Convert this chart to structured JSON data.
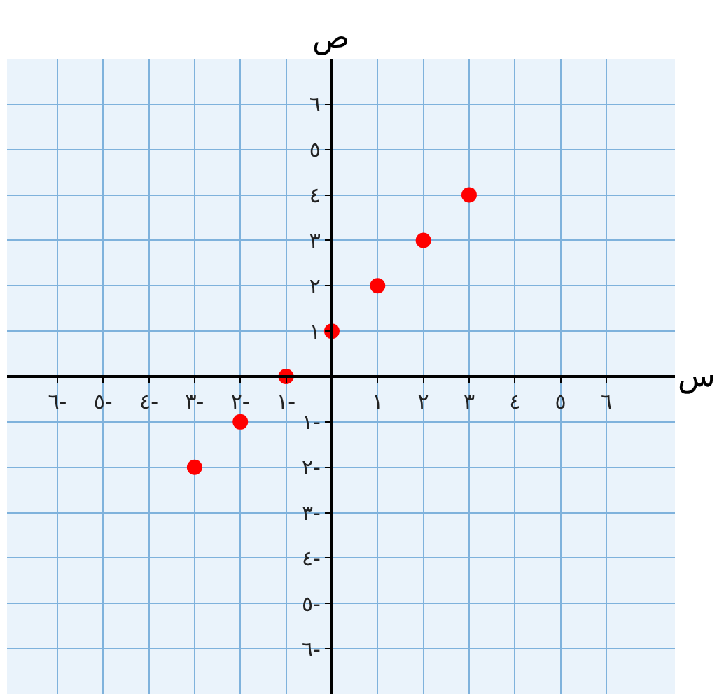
{
  "chart_data": {
    "type": "scatter",
    "xlabel": "س",
    "ylabel": "ص",
    "x": [
      -3,
      -2,
      -1,
      0,
      1,
      2,
      3
    ],
    "series": [
      {
        "color": "#ff0000",
        "values": [
          -2,
          -1,
          0,
          1,
          2,
          3,
          4
        ]
      }
    ],
    "xlim": [
      -7.1,
      7.5
    ],
    "ylim": [
      -7,
      7
    ],
    "xticks": [
      {
        "value": -6,
        "label": "٦-"
      },
      {
        "value": -5,
        "label": "٥-"
      },
      {
        "value": -4,
        "label": "٤-"
      },
      {
        "value": -3,
        "label": "٣-"
      },
      {
        "value": -2,
        "label": "٢-"
      },
      {
        "value": -1,
        "label": "١-"
      },
      {
        "value": 1,
        "label": "١"
      },
      {
        "value": 2,
        "label": "٢"
      },
      {
        "value": 3,
        "label": "٣"
      },
      {
        "value": 4,
        "label": "٤"
      },
      {
        "value": 5,
        "label": "٥"
      },
      {
        "value": 6,
        "label": "٦"
      }
    ],
    "yticks": [
      {
        "value": -6,
        "label": "٦-"
      },
      {
        "value": -5,
        "label": "٥-"
      },
      {
        "value": -4,
        "label": "٤-"
      },
      {
        "value": -3,
        "label": "٣-"
      },
      {
        "value": -2,
        "label": "٢-"
      },
      {
        "value": -1,
        "label": "١-"
      },
      {
        "value": 1,
        "label": "١"
      },
      {
        "value": 2,
        "label": "٢"
      },
      {
        "value": 3,
        "label": "٣"
      },
      {
        "value": 4,
        "label": "٤"
      },
      {
        "value": 5,
        "label": "٥"
      },
      {
        "value": 6,
        "label": "٦"
      }
    ],
    "grid": true,
    "marker": "circle"
  }
}
